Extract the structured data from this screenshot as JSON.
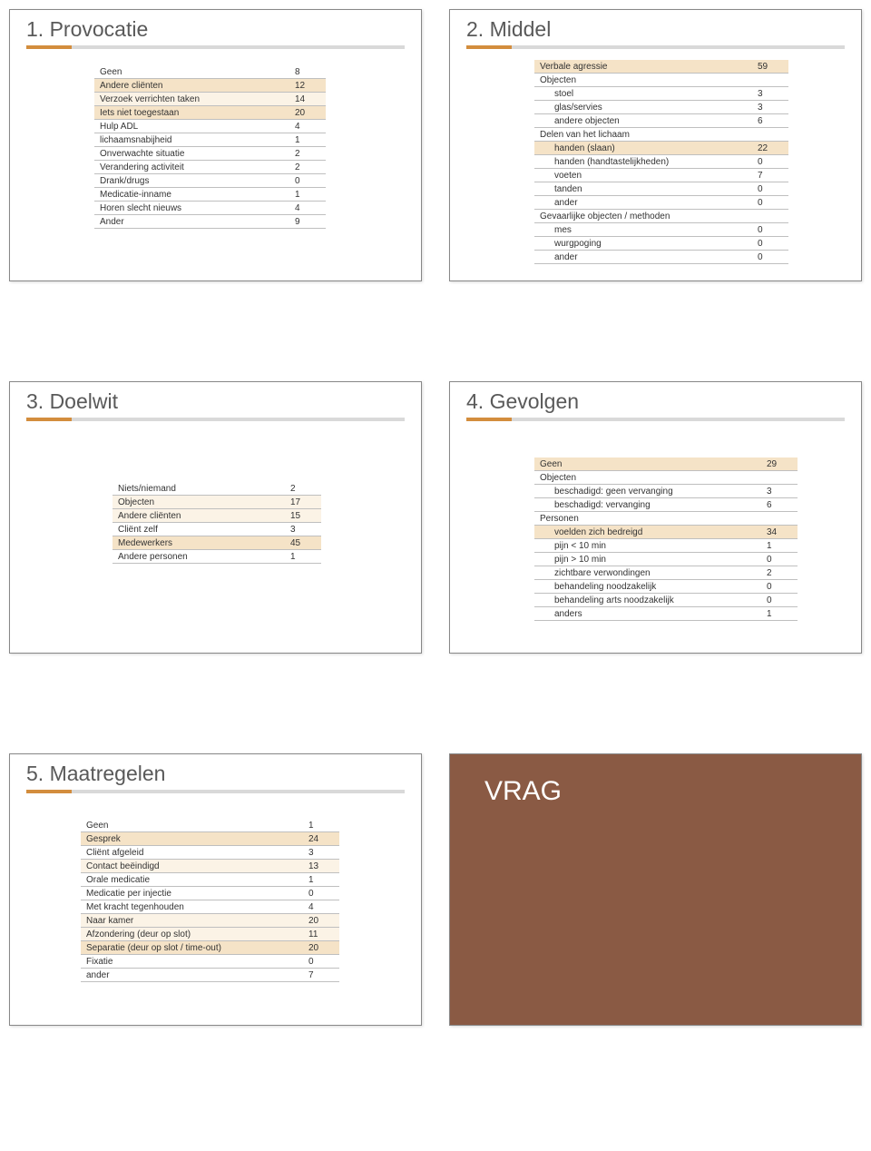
{
  "colors": {
    "accent": "#d38d3d",
    "neutral": "#d9d9d9",
    "highlight": "#f5e3c7",
    "highlight_light": "#fbf3e6",
    "vrag_bg": "#8a5a44"
  },
  "slides": {
    "provocatie": {
      "title": "1. Provocatie",
      "rows": [
        {
          "label": "Geen",
          "value": "8",
          "cls": ""
        },
        {
          "label": "Andere cliënten",
          "value": "12",
          "cls": "hl"
        },
        {
          "label": "Verzoek verrichten taken",
          "value": "14",
          "cls": "hl-light"
        },
        {
          "label": "Iets niet toegestaan",
          "value": "20",
          "cls": "hl"
        },
        {
          "label": "Hulp ADL",
          "value": "4",
          "cls": ""
        },
        {
          "label": "lichaamsnabijheid",
          "value": "1",
          "cls": ""
        },
        {
          "label": "Onverwachte situatie",
          "value": "2",
          "cls": ""
        },
        {
          "label": "Verandering activiteit",
          "value": "2",
          "cls": ""
        },
        {
          "label": "Drank/drugs",
          "value": "0",
          "cls": ""
        },
        {
          "label": "Medicatie-inname",
          "value": "1",
          "cls": ""
        },
        {
          "label": "Horen slecht nieuws",
          "value": "4",
          "cls": ""
        },
        {
          "label": "Ander",
          "value": "9",
          "cls": ""
        }
      ]
    },
    "middel": {
      "title": "2. Middel",
      "rows": [
        {
          "label": "Verbale agressie",
          "value": "59",
          "cls": "hl",
          "indent": 0
        },
        {
          "label": "Objecten",
          "value": "",
          "cls": "",
          "indent": 0
        },
        {
          "label": "stoel",
          "value": "3",
          "cls": "",
          "indent": 1
        },
        {
          "label": "glas/servies",
          "value": "3",
          "cls": "",
          "indent": 1
        },
        {
          "label": "andere objecten",
          "value": "6",
          "cls": "",
          "indent": 1
        },
        {
          "label": "Delen van het lichaam",
          "value": "",
          "cls": "",
          "indent": 0
        },
        {
          "label": "handen (slaan)",
          "value": "22",
          "cls": "hl",
          "indent": 1
        },
        {
          "label": "handen (handtastelijkheden)",
          "value": "0",
          "cls": "",
          "indent": 1
        },
        {
          "label": "voeten",
          "value": "7",
          "cls": "",
          "indent": 1
        },
        {
          "label": "tanden",
          "value": "0",
          "cls": "",
          "indent": 1
        },
        {
          "label": "ander",
          "value": "0",
          "cls": "",
          "indent": 1
        },
        {
          "label": "Gevaarlijke objecten / methoden",
          "value": "",
          "cls": "",
          "indent": 0
        },
        {
          "label": "mes",
          "value": "0",
          "cls": "",
          "indent": 1
        },
        {
          "label": "wurgpoging",
          "value": "0",
          "cls": "",
          "indent": 1
        },
        {
          "label": "ander",
          "value": "0",
          "cls": "",
          "indent": 1
        }
      ]
    },
    "doelwit": {
      "title": "3. Doelwit",
      "rows": [
        {
          "label": "Niets/niemand",
          "value": "2",
          "cls": ""
        },
        {
          "label": "Objecten",
          "value": "17",
          "cls": "hl-light"
        },
        {
          "label": "Andere cliënten",
          "value": "15",
          "cls": "hl-light"
        },
        {
          "label": "Cliënt zelf",
          "value": "3",
          "cls": ""
        },
        {
          "label": "Medewerkers",
          "value": "45",
          "cls": "hl"
        },
        {
          "label": "Andere personen",
          "value": "1",
          "cls": ""
        }
      ]
    },
    "gevolgen": {
      "title": "4. Gevolgen",
      "rows": [
        {
          "label": "Geen",
          "value": "29",
          "cls": "hl",
          "indent": 0
        },
        {
          "label": "Objecten",
          "value": "",
          "cls": "",
          "indent": 0
        },
        {
          "label": "beschadigd: geen vervanging",
          "value": "3",
          "cls": "",
          "indent": 1
        },
        {
          "label": "beschadigd: vervanging",
          "value": "6",
          "cls": "",
          "indent": 1
        },
        {
          "label": "Personen",
          "value": "",
          "cls": "",
          "indent": 0
        },
        {
          "label": "voelden zich bedreigd",
          "value": "34",
          "cls": "hl",
          "indent": 1
        },
        {
          "label": "pijn < 10 min",
          "value": "1",
          "cls": "",
          "indent": 1
        },
        {
          "label": "pijn > 10 min",
          "value": "0",
          "cls": "",
          "indent": 1
        },
        {
          "label": "zichtbare verwondingen",
          "value": "2",
          "cls": "",
          "indent": 1
        },
        {
          "label": "behandeling noodzakelijk",
          "value": "0",
          "cls": "",
          "indent": 1
        },
        {
          "label": "behandeling arts noodzakelijk",
          "value": "0",
          "cls": "",
          "indent": 1
        },
        {
          "label": "anders",
          "value": "1",
          "cls": "",
          "indent": 1
        }
      ]
    },
    "maatregelen": {
      "title": "5. Maatregelen",
      "rows": [
        {
          "label": "Geen",
          "value": "1",
          "cls": ""
        },
        {
          "label": "Gesprek",
          "value": "24",
          "cls": "hl"
        },
        {
          "label": "Cliënt afgeleid",
          "value": "3",
          "cls": ""
        },
        {
          "label": "Contact beëindigd",
          "value": "13",
          "cls": "hl-light"
        },
        {
          "label": "Orale medicatie",
          "value": "1",
          "cls": ""
        },
        {
          "label": "Medicatie per injectie",
          "value": "0",
          "cls": ""
        },
        {
          "label": "Met kracht tegenhouden",
          "value": "4",
          "cls": ""
        },
        {
          "label": "Naar kamer",
          "value": "20",
          "cls": "hl-light"
        },
        {
          "label": "Afzondering (deur op slot)",
          "value": "11",
          "cls": "hl-light"
        },
        {
          "label": "Separatie (deur op slot / time-out)",
          "value": "20",
          "cls": "hl"
        },
        {
          "label": "Fixatie",
          "value": "0",
          "cls": ""
        },
        {
          "label": "ander",
          "value": "7",
          "cls": ""
        }
      ]
    },
    "vrag": {
      "title": "VRAG"
    }
  }
}
